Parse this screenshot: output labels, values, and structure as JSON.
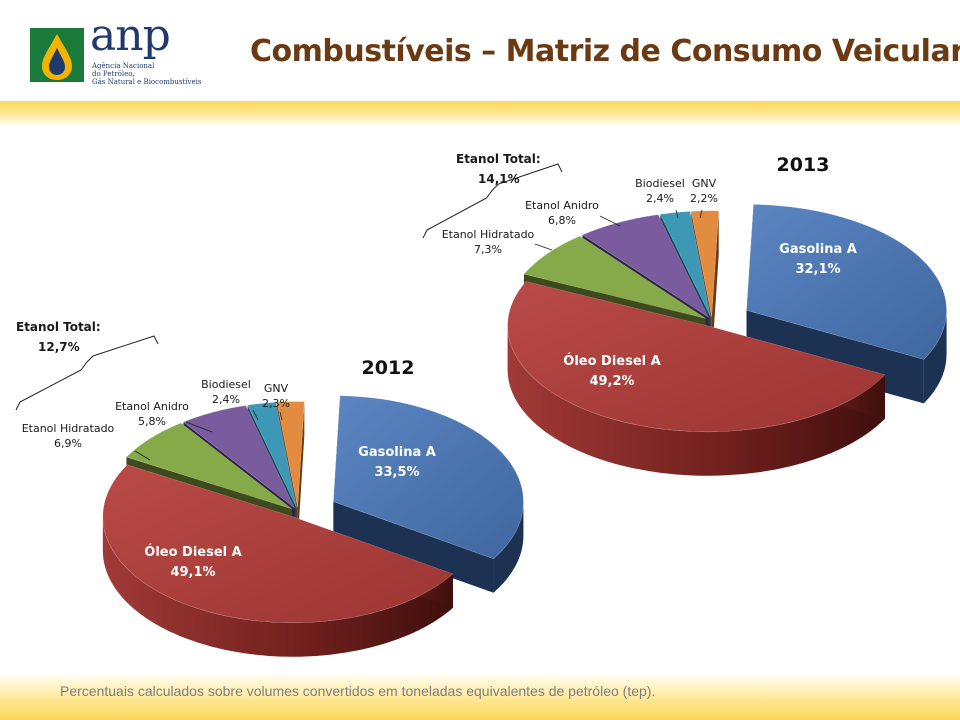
{
  "header": {
    "logo_text": "anp",
    "logo_subtitle": [
      "Agência Nacional",
      "do Petróleo,",
      "Gás Natural e Biocombustíveis"
    ],
    "title": "Combustíveis – Matriz de Consumo Veicular"
  },
  "footnote": "Percentuais calculados sobre volumes convertidos em toneladas equivalentes de petróleo (tep).",
  "colors": {
    "gasolina": "#4f79b4",
    "diesel": "#b1403d",
    "hidratado": "#86a94a",
    "anidro": "#7a5c9e",
    "biodiesel": "#3d98b6",
    "gnv": "#e38b3f",
    "title": "#6b3a12"
  },
  "chart_data": [
    {
      "type": "pie",
      "style": "3d-exploded",
      "year_label": "2012",
      "slices": [
        {
          "name": "Gasolina A",
          "value": 33.5,
          "label": "33,5%"
        },
        {
          "name": "Óleo Diesel A",
          "value": 49.1,
          "label": "49,1%"
        },
        {
          "name": "Etanol Hidratado",
          "value": 6.9,
          "label": "6,9%"
        },
        {
          "name": "Etanol Anidro",
          "value": 5.8,
          "label": "5,8%"
        },
        {
          "name": "Biodiesel",
          "value": 2.4,
          "label": "2,4%"
        },
        {
          "name": "GNV",
          "value": 2.3,
          "label": "2,3%"
        }
      ],
      "group_annotation": {
        "name": "Etanol Total:",
        "label": "12,7%"
      }
    },
    {
      "type": "pie",
      "style": "3d-exploded",
      "year_label": "2013",
      "slices": [
        {
          "name": "Gasolina A",
          "value": 32.1,
          "label": "32,1%"
        },
        {
          "name": "Óleo Diesel A",
          "value": 49.2,
          "label": "49,2%"
        },
        {
          "name": "Etanol Hidratado",
          "value": 7.3,
          "label": "7,3%"
        },
        {
          "name": "Etanol Anidro",
          "value": 6.8,
          "label": "6,8%"
        },
        {
          "name": "Biodiesel",
          "value": 2.4,
          "label": "2,4%"
        },
        {
          "name": "GNV",
          "value": 2.2,
          "label": "2,2%"
        }
      ],
      "group_annotation": {
        "name": "Etanol Total:",
        "label": "14,1%"
      }
    }
  ]
}
